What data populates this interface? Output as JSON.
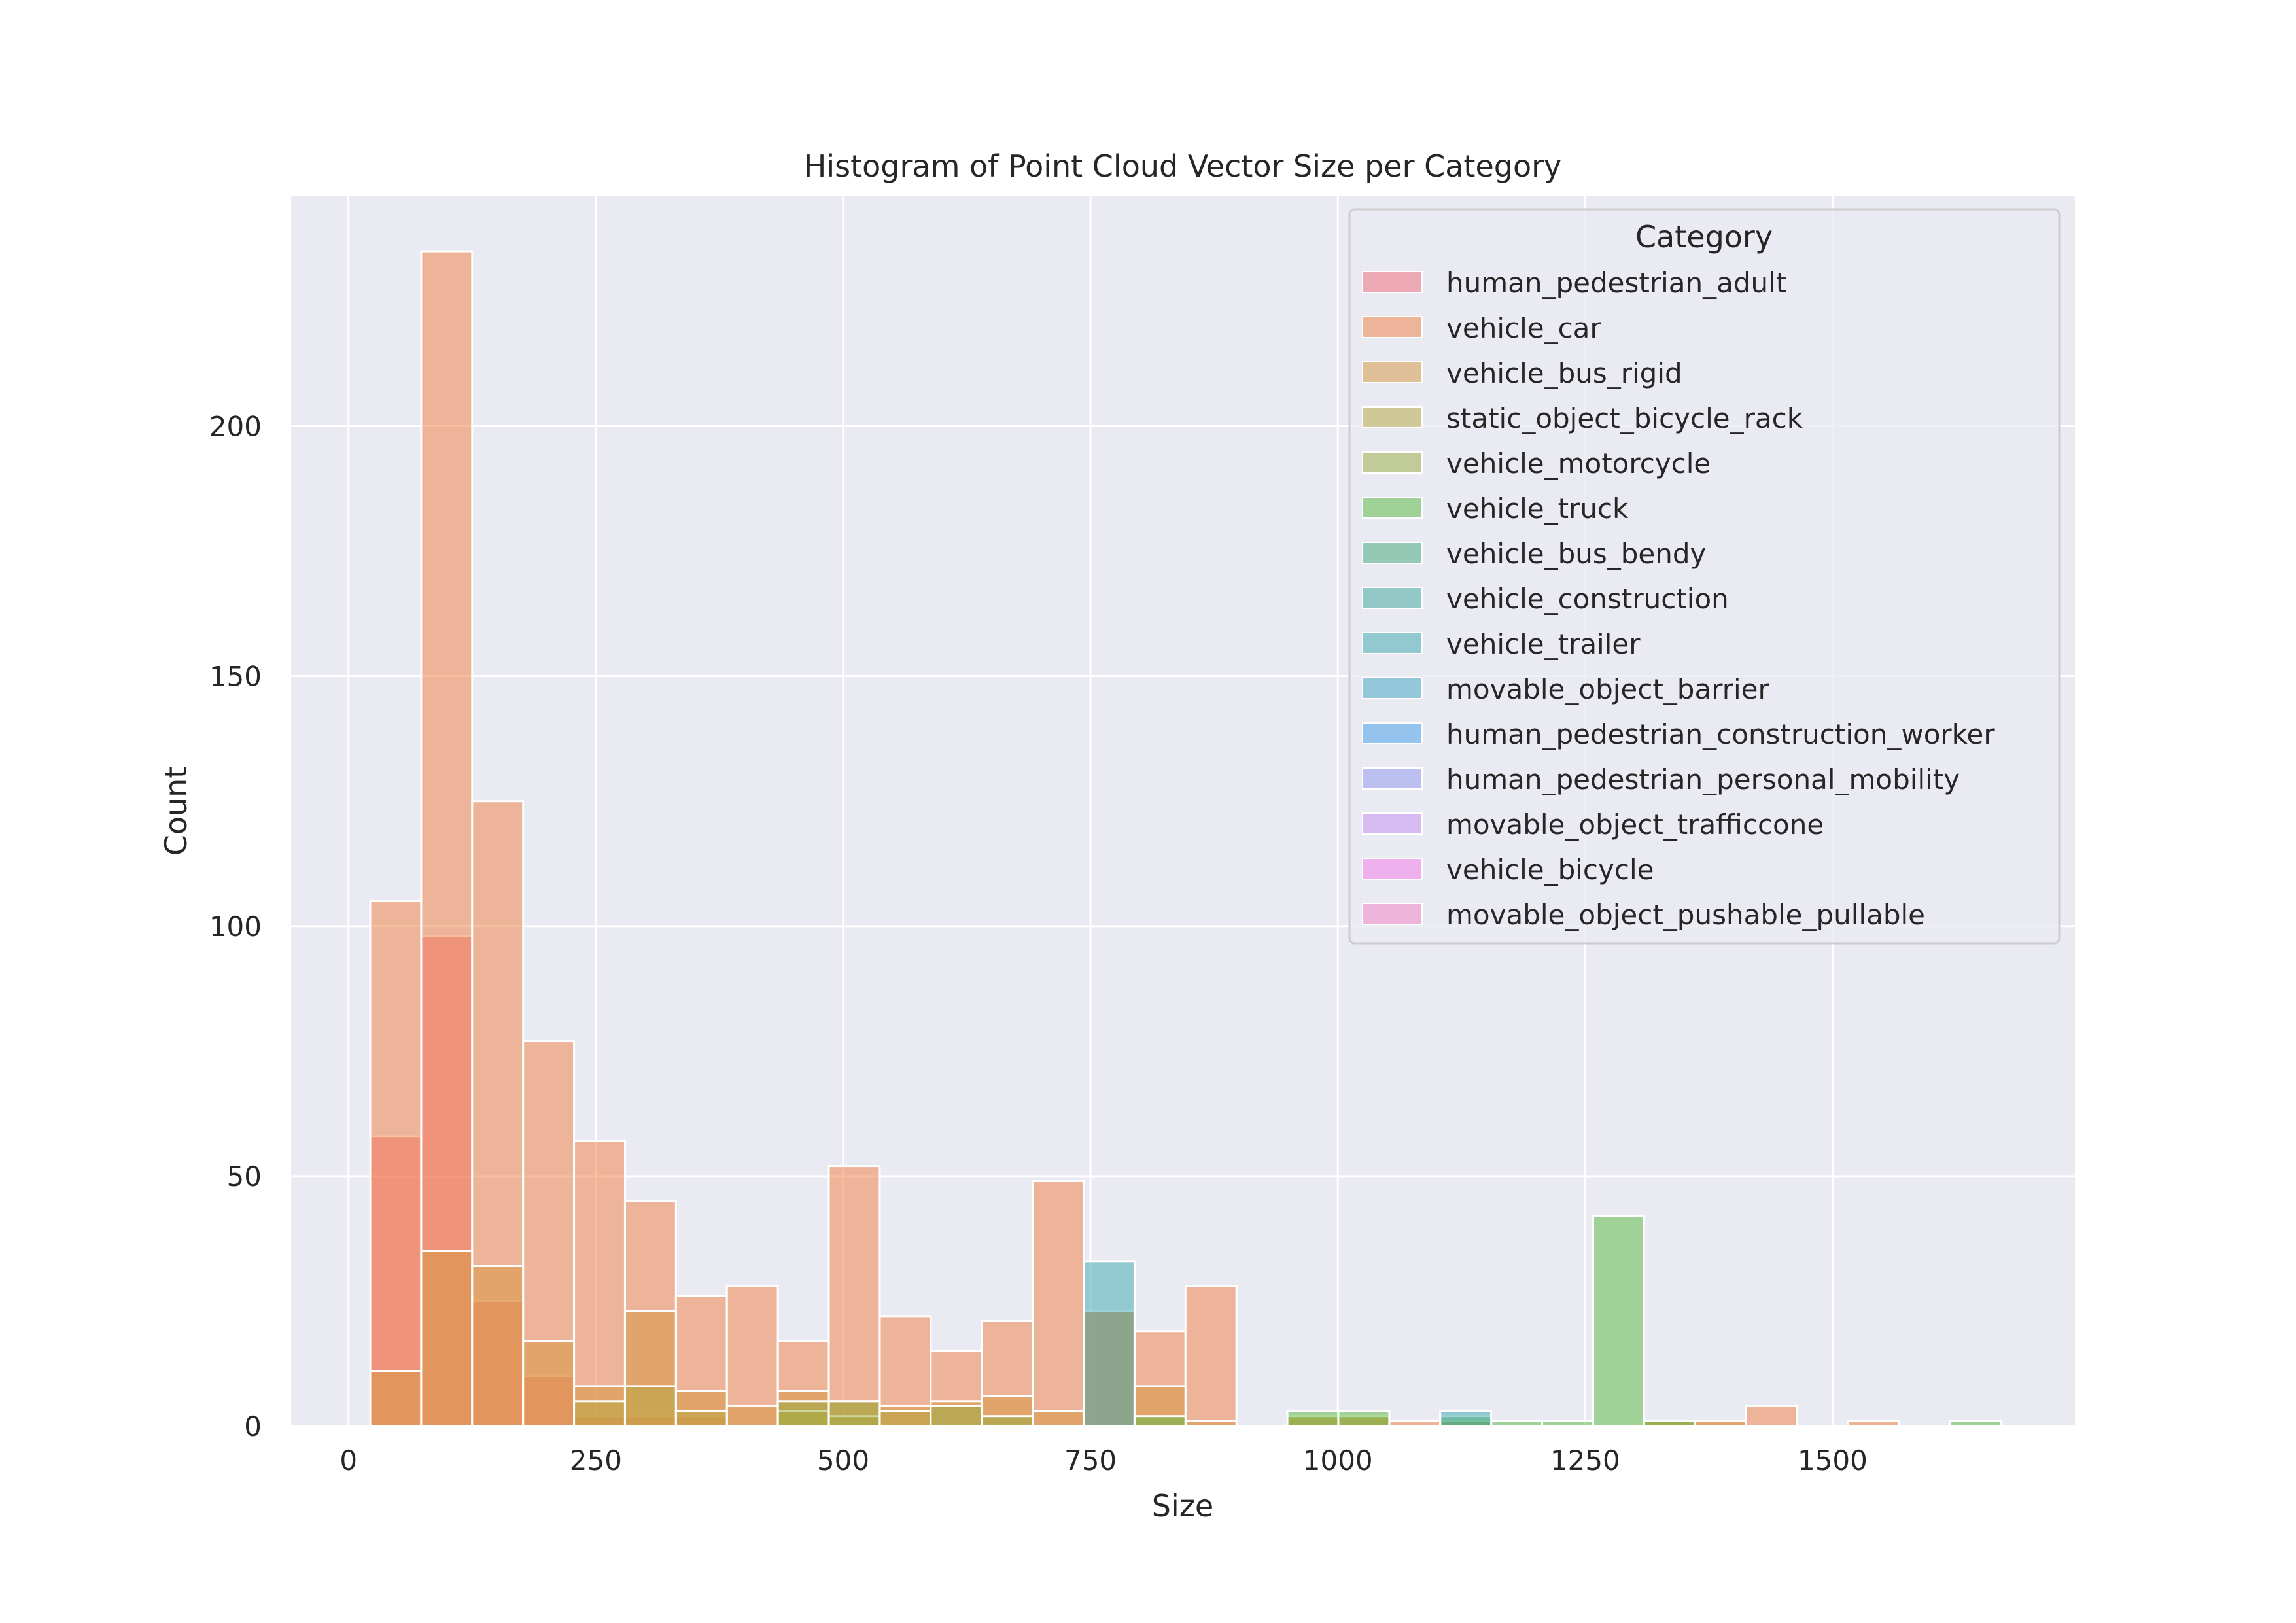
{
  "chart_data": {
    "type": "histogram",
    "title": "Histogram of Point Cloud Vector Size per Category",
    "xlabel": "Size",
    "ylabel": "Count",
    "xlim": [
      -58,
      1745
    ],
    "ylim": [
      0,
      246
    ],
    "xticks": [
      0,
      250,
      500,
      750,
      1000,
      1250,
      1500
    ],
    "yticks": [
      0,
      50,
      100,
      150,
      200
    ],
    "grid": true,
    "legend": {
      "title": "Category",
      "position": "upper right"
    },
    "bin_width": 51.5,
    "bin_start": 22,
    "series": [
      {
        "name": "human_pedestrian_adult",
        "color": "#f26a75",
        "bins": [
          [
            0,
            58
          ],
          [
            1,
            98
          ],
          [
            2,
            25
          ],
          [
            3,
            10
          ],
          [
            4,
            2
          ],
          [
            5,
            2
          ],
          [
            6,
            2
          ]
        ]
      },
      {
        "name": "vehicle_car",
        "color": "#ef7d40",
        "bins": [
          [
            0,
            105
          ],
          [
            1,
            235
          ],
          [
            2,
            125
          ],
          [
            3,
            77
          ],
          [
            4,
            57
          ],
          [
            5,
            45
          ],
          [
            6,
            26
          ],
          [
            7,
            28
          ],
          [
            8,
            17
          ],
          [
            9,
            52
          ],
          [
            10,
            22
          ],
          [
            11,
            15
          ],
          [
            12,
            21
          ],
          [
            13,
            49
          ],
          [
            14,
            23
          ],
          [
            15,
            19
          ],
          [
            16,
            28
          ],
          [
            18,
            2
          ],
          [
            19,
            2
          ],
          [
            20,
            1
          ],
          [
            21,
            1
          ],
          [
            25,
            1
          ],
          [
            26,
            1
          ],
          [
            27,
            4
          ],
          [
            29,
            1
          ]
        ]
      },
      {
        "name": "vehicle_bus_rigid",
        "color": "#d5963e",
        "bins": [
          [
            0,
            11
          ],
          [
            1,
            35
          ],
          [
            2,
            32
          ],
          [
            3,
            17
          ],
          [
            4,
            8
          ],
          [
            5,
            23
          ],
          [
            6,
            7
          ],
          [
            7,
            4
          ],
          [
            8,
            7
          ],
          [
            9,
            5
          ],
          [
            10,
            4
          ],
          [
            11,
            5
          ],
          [
            12,
            6
          ],
          [
            13,
            3
          ],
          [
            14,
            23
          ],
          [
            15,
            8
          ],
          [
            16,
            1
          ],
          [
            18,
            2
          ],
          [
            19,
            2
          ],
          [
            21,
            1
          ],
          [
            25,
            1
          ],
          [
            26,
            1
          ]
        ]
      },
      {
        "name": "static_object_bicycle_rack",
        "color": "#b8a63e",
        "bins": [
          [
            4,
            5
          ],
          [
            5,
            8
          ],
          [
            6,
            3
          ],
          [
            8,
            3
          ],
          [
            9,
            2
          ],
          [
            10,
            3
          ]
        ]
      },
      {
        "name": "vehicle_motorcycle",
        "color": "#96ab3e",
        "bins": [
          [
            8,
            5
          ],
          [
            9,
            5
          ],
          [
            11,
            4
          ],
          [
            12,
            2
          ]
        ]
      },
      {
        "name": "vehicle_truck",
        "color": "#55b93c",
        "bins": [
          [
            15,
            2
          ],
          [
            18,
            3
          ],
          [
            19,
            3
          ],
          [
            21,
            2
          ],
          [
            22,
            1
          ],
          [
            23,
            1
          ],
          [
            24,
            42
          ],
          [
            25,
            1
          ],
          [
            31,
            1
          ]
        ]
      },
      {
        "name": "vehicle_bus_bendy",
        "color": "#3daa78",
        "bins": []
      },
      {
        "name": "vehicle_construction",
        "color": "#3aa89b",
        "bins": []
      },
      {
        "name": "vehicle_trailer",
        "color": "#3aa6ae",
        "bins": [
          [
            14,
            33
          ],
          [
            21,
            3
          ]
        ]
      },
      {
        "name": "movable_object_barrier",
        "color": "#3ba3c2",
        "bins": []
      },
      {
        "name": "human_pedestrian_construction_worker",
        "color": "#3e9de8",
        "bins": []
      },
      {
        "name": "human_pedestrian_personal_mobility",
        "color": "#8e95f0",
        "bins": []
      },
      {
        "name": "movable_object_trafficcone",
        "color": "#c58cf0",
        "bins": []
      },
      {
        "name": "vehicle_bicycle",
        "color": "#ef76e6",
        "bins": []
      },
      {
        "name": "movable_object_pushable_pullable",
        "color": "#f07cc2",
        "bins": []
      }
    ]
  }
}
